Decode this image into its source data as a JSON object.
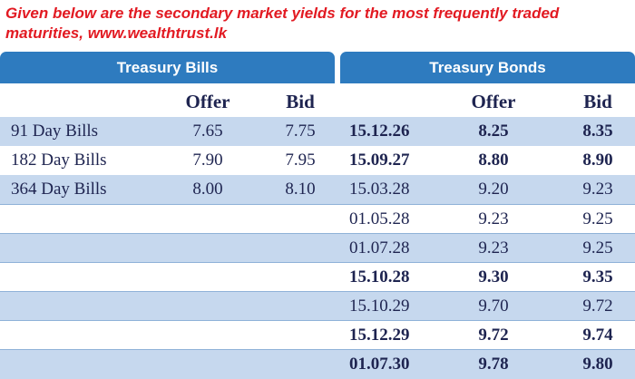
{
  "caption": "Given below are the secondary market yields for the most frequently traded maturities, www.wealthtrust.lk",
  "bills": {
    "title": "Treasury Bills",
    "offer_label": "Offer",
    "bid_label": "Bid",
    "rows": [
      {
        "name": "91 Day Bills",
        "offer": "7.65",
        "bid": "7.75"
      },
      {
        "name": "182 Day Bills",
        "offer": "7.90",
        "bid": "7.95"
      },
      {
        "name": "364 Day Bills",
        "offer": "8.00",
        "bid": "8.10"
      }
    ]
  },
  "bonds": {
    "title": "Treasury Bonds",
    "offer_label": "Offer",
    "bid_label": "Bid",
    "rows": [
      {
        "date": "15.12.26",
        "offer": "8.25",
        "bid": "8.35",
        "bold": true
      },
      {
        "date": "15.09.27",
        "offer": "8.80",
        "bid": "8.90",
        "bold": true
      },
      {
        "date": "15.03.28",
        "offer": "9.20",
        "bid": "9.23",
        "bold": false
      },
      {
        "date": "01.05.28",
        "offer": "9.23",
        "bid": "9.25",
        "bold": false
      },
      {
        "date": "01.07.28",
        "offer": "9.23",
        "bid": "9.25",
        "bold": false
      },
      {
        "date": "15.10.28",
        "offer": "9.30",
        "bid": "9.35",
        "bold": true
      },
      {
        "date": "15.10.29",
        "offer": "9.70",
        "bid": "9.72",
        "bold": false
      },
      {
        "date": "15.12.29",
        "offer": "9.72",
        "bid": "9.74",
        "bold": true
      },
      {
        "date": "01.07.30",
        "offer": "9.78",
        "bid": "9.80",
        "bold": true
      }
    ]
  }
}
